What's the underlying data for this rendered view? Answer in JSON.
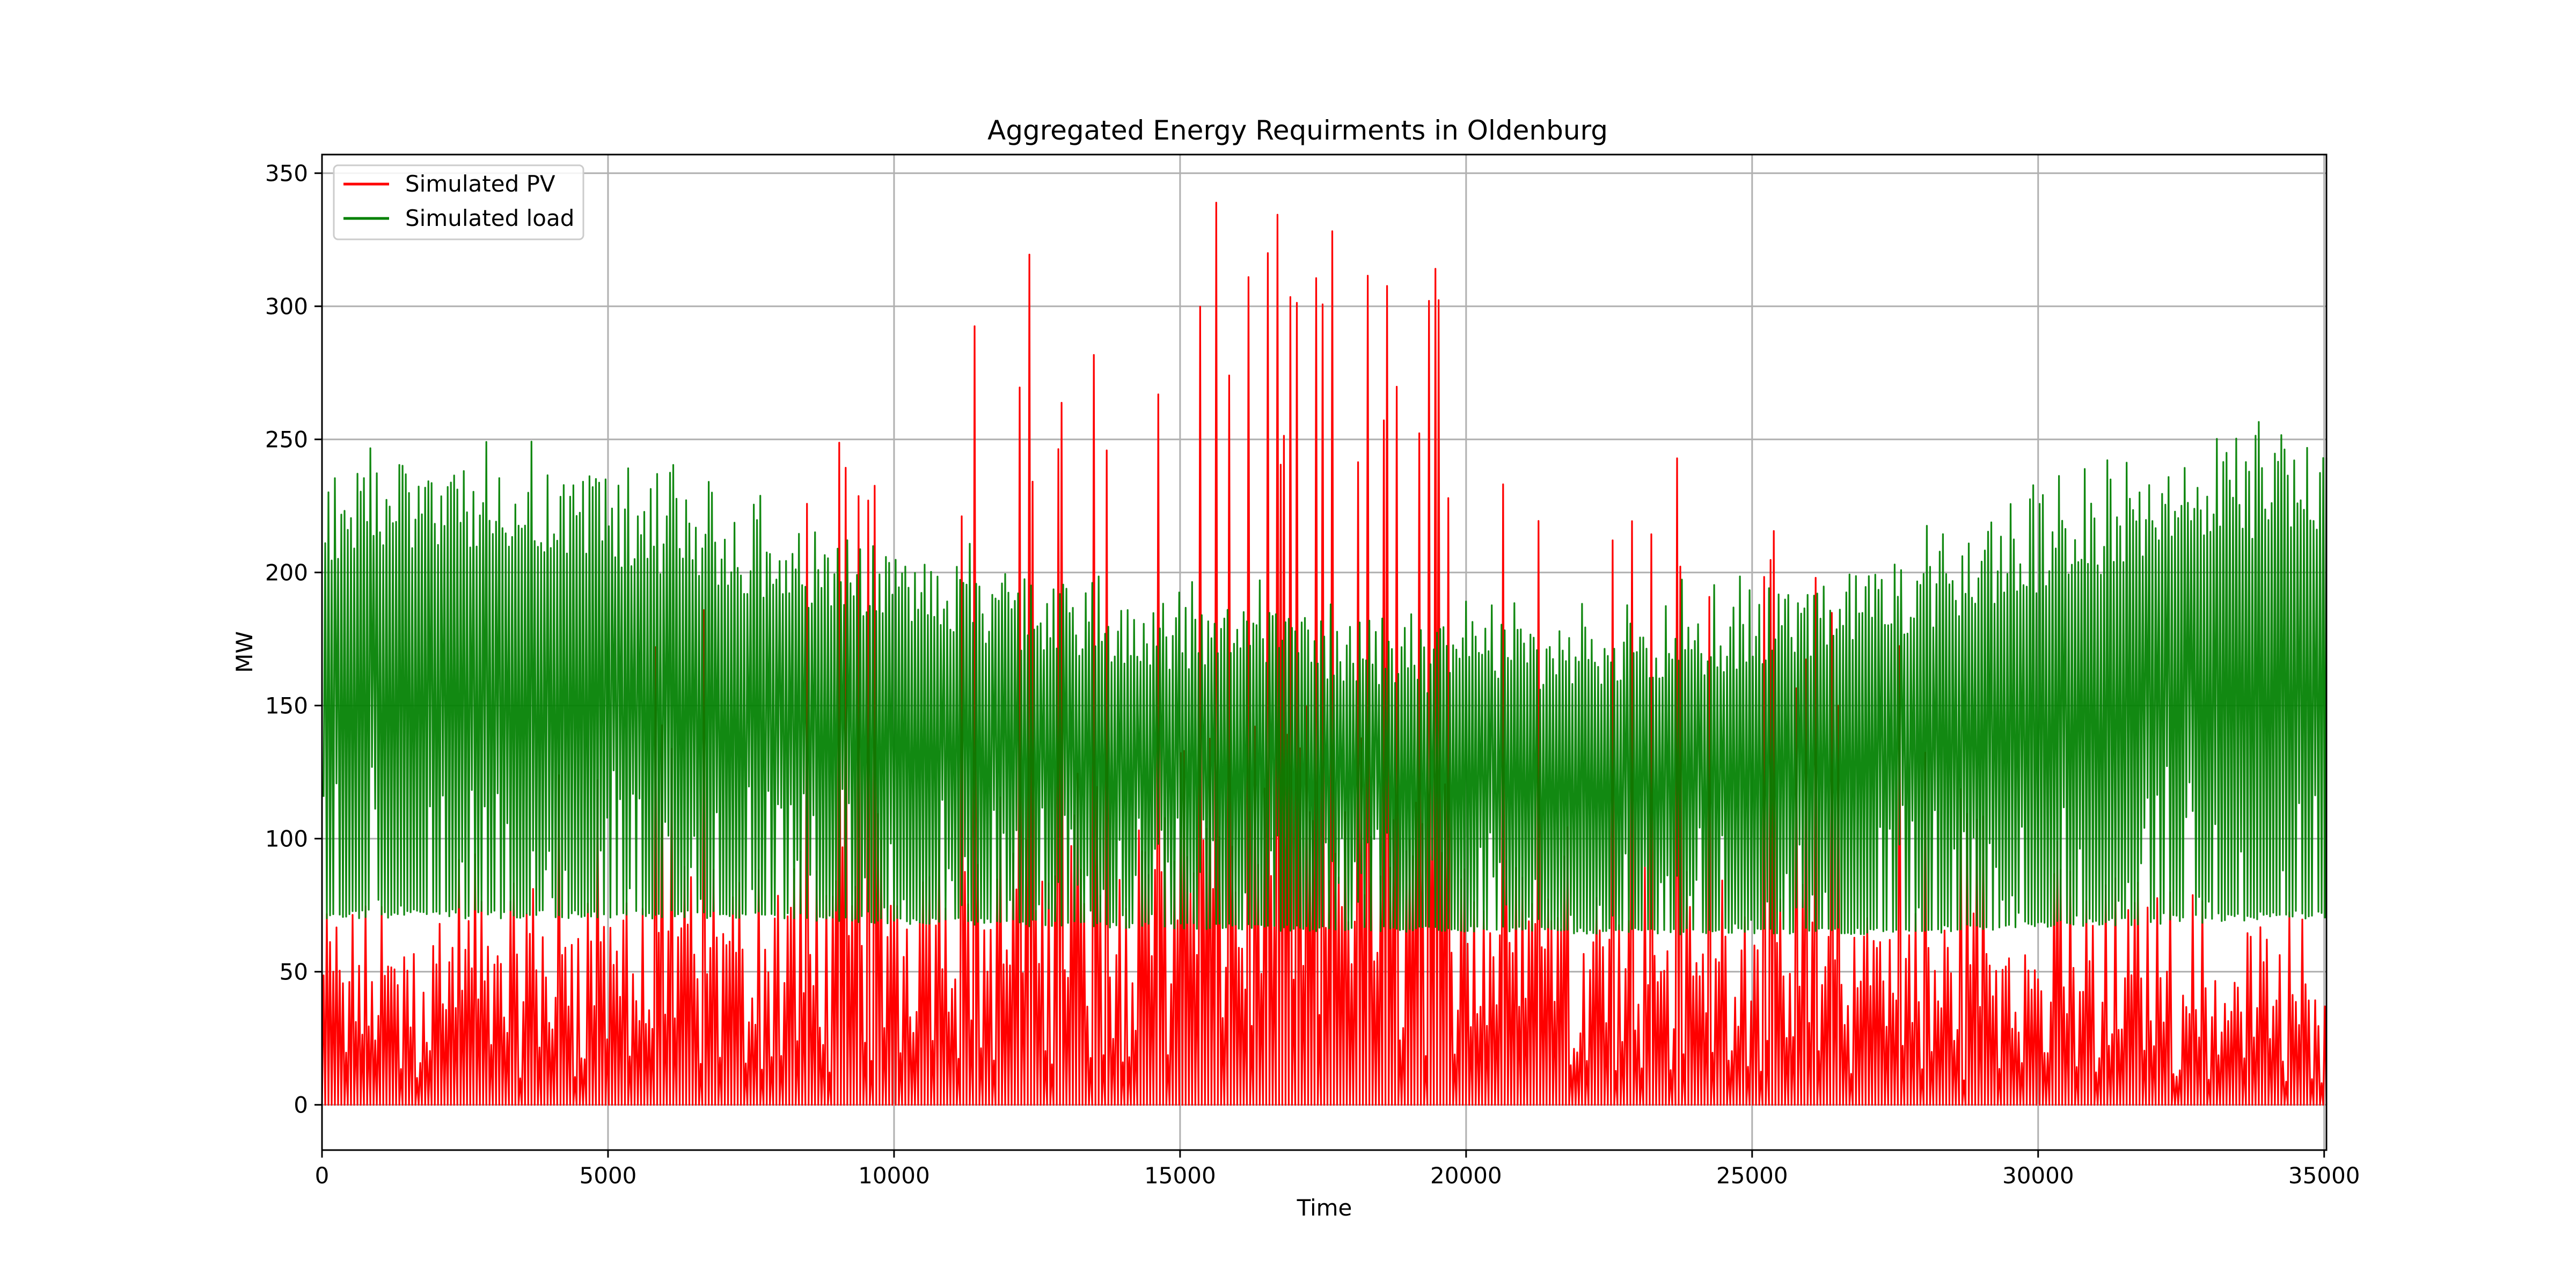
{
  "chart_data": {
    "type": "line",
    "title": "Aggregated Energy Requirments in Oldenburg",
    "xlabel": "Time",
    "ylabel": "MW",
    "xlim": [
      0,
      35040
    ],
    "ylim": [
      -17,
      357
    ],
    "xticks": [
      0,
      5000,
      10000,
      15000,
      20000,
      25000,
      30000,
      35000
    ],
    "yticks": [
      0,
      50,
      100,
      150,
      200,
      250,
      300,
      350
    ],
    "grid": true,
    "legend": "top-left",
    "series": [
      {
        "name": "Simulated PV",
        "color": "#ff0000",
        "description_envelope": "daily oscillation between 0 and a seasonal peak",
        "envelope": {
          "x": [
            0,
            2500,
            5000,
            7500,
            9000,
            10500,
            12000,
            13500,
            15000,
            16500,
            18000,
            19500,
            21000,
            22500,
            24000,
            25500,
            27000,
            29000,
            31000,
            33000,
            35040
          ],
          "typical_max": [
            55,
            62,
            68,
            70,
            80,
            90,
            95,
            100,
            110,
            120,
            115,
            105,
            95,
            75,
            68,
            66,
            64,
            60,
            55,
            50,
            48
          ],
          "peak_max": [
            65,
            100,
            150,
            226,
            265,
            305,
            320,
            333,
            340,
            338,
            336,
            330,
            310,
            280,
            256,
            215,
            205,
            120,
            90,
            80,
            70
          ]
        }
      },
      {
        "name": "Simulated load",
        "color": "#008000",
        "description_envelope": "daily oscillation between a seasonal minimum and maximum",
        "envelope": {
          "x": [
            0,
            2500,
            5000,
            7500,
            10000,
            12500,
            15000,
            17500,
            20000,
            22500,
            25000,
            27500,
            30000,
            32500,
            35040
          ],
          "min": [
            70,
            70,
            70,
            70,
            68,
            67,
            66,
            65,
            65,
            64,
            64,
            64,
            66,
            68,
            70
          ],
          "max": [
            237,
            240,
            235,
            222,
            208,
            197,
            188,
            183,
            178,
            182,
            190,
            202,
            222,
            240,
            250
          ]
        }
      }
    ]
  }
}
